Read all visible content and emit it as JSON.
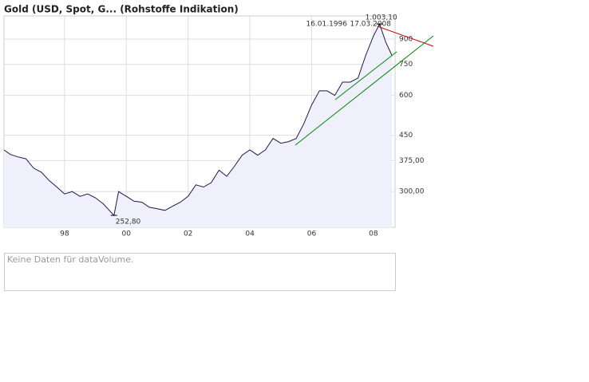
{
  "chart_data": {
    "type": "line",
    "title": "Gold (USD, Spot, G... (Rohstoffe Indikation)",
    "period_start": "16.01.1996",
    "period_end": "17.03.2008",
    "log_scale": true,
    "grid": true,
    "fill_color": "#f0f0fc",
    "xlim": [
      1996.04,
      2008.7
    ],
    "xticks": [
      {
        "value": 1998,
        "label": "98"
      },
      {
        "value": 2000,
        "label": "00"
      },
      {
        "value": 2002,
        "label": "02"
      },
      {
        "value": 2004,
        "label": "04"
      },
      {
        "value": 2006,
        "label": "06"
      },
      {
        "value": 2008,
        "label": "08"
      }
    ],
    "ylim": [
      232,
      1063
    ],
    "yticks": [
      {
        "value": 300,
        "label": "300,00"
      },
      {
        "value": 375,
        "label": "375,00"
      },
      450,
      600,
      750,
      900
    ],
    "x": [
      1996.04,
      1996.25,
      1996.5,
      1996.75,
      1997.0,
      1997.25,
      1997.5,
      1997.75,
      1998.0,
      1998.25,
      1998.5,
      1998.75,
      1999.0,
      1999.25,
      1999.6,
      1999.75,
      2000.0,
      2000.25,
      2000.5,
      2000.75,
      2001.0,
      2001.25,
      2001.5,
      2001.75,
      2002.0,
      2002.25,
      2002.5,
      2002.75,
      2003.0,
      2003.25,
      2003.5,
      2003.75,
      2004.0,
      2004.25,
      2004.5,
      2004.75,
      2005.0,
      2005.25,
      2005.5,
      2005.75,
      2006.0,
      2006.25,
      2006.5,
      2006.75,
      2007.0,
      2007.25,
      2007.5,
      2007.75,
      2008.0,
      2008.2,
      2008.4,
      2008.6
    ],
    "series": [
      {
        "color": "#1a1a4a",
        "values": [
          405,
          392,
          385,
          380,
          355,
          345,
          325,
          310,
          295,
          300,
          290,
          295,
          287,
          275,
          252.8,
          300,
          290,
          280,
          278,
          268,
          265,
          262,
          270,
          278,
          290,
          315,
          310,
          320,
          350,
          335,
          360,
          390,
          405,
          390,
          405,
          440,
          425,
          430,
          440,
          490,
          560,
          620,
          620,
          600,
          660,
          660,
          680,
          800,
          920,
          1003.1,
          880,
          800
        ]
      }
    ],
    "annotations": [
      {
        "x": 1999.6,
        "y": 252.8,
        "label": "252,80"
      },
      {
        "x": 2008.2,
        "y": 1003.1,
        "label": "1.003,10"
      }
    ],
    "volume_note": "Keine Daten für dataVolume."
  }
}
